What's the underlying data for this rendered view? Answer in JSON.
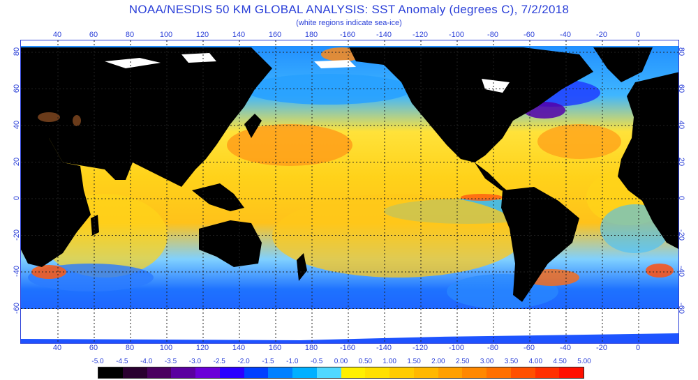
{
  "title": "NOAA/NESDIS 50 KM GLOBAL ANALYSIS: SST Anomaly (degrees C), 7/2/2018",
  "subtitle": "(white regions indicate sea-ice)",
  "longitude_labels": [
    "40",
    "60",
    "80",
    "100",
    "120",
    "140",
    "160",
    "180",
    "-160",
    "-140",
    "-120",
    "-100",
    "-80",
    "-60",
    "-40",
    "-20",
    "0"
  ],
  "latitude_labels": [
    "80",
    "60",
    "40",
    "20",
    "0",
    "-20",
    "-40",
    "-60"
  ],
  "legend": {
    "labels": [
      "-5.0",
      "-4.5",
      "-4.0",
      "-3.5",
      "-3.0",
      "-2.5",
      "-2.0",
      "-1.5",
      "-1.0",
      "-0.5",
      "0.00",
      "0.50",
      "1.00",
      "1.50",
      "2.00",
      "2.50",
      "3.00",
      "3.50",
      "4.00",
      "4.50",
      "5.00"
    ],
    "colors": [
      "#000000",
      "#2a0030",
      "#4a0060",
      "#5a00a0",
      "#6a00d8",
      "#2a00ff",
      "#0040ff",
      "#0080ff",
      "#00b0ff",
      "#50d8ff",
      "#fff000",
      "#ffe000",
      "#ffcc00",
      "#ffb800",
      "#ffa000",
      "#ff8800",
      "#ff7000",
      "#ff5000",
      "#ff3000",
      "#ff1000"
    ]
  },
  "colors": {
    "land": "#000000",
    "sea_ice": "#ffffff",
    "text": "#2a3fd8",
    "grid": "#222222"
  }
}
